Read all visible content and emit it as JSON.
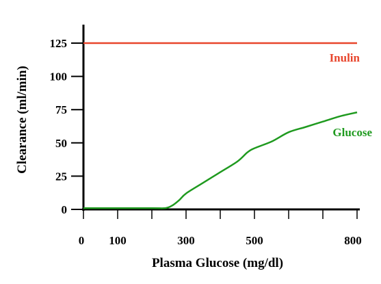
{
  "chart_data": {
    "type": "line",
    "title": "",
    "xlabel": "Plasma Glucose (mg/dl)",
    "ylabel": "Clearance (ml/min)",
    "xlim": [
      0,
      800
    ],
    "ylim": [
      0,
      137
    ],
    "x_ticks": [
      0,
      100,
      200,
      300,
      400,
      500,
      600,
      700,
      800
    ],
    "x_tick_labels": [
      "0",
      "100",
      "300",
      "500",
      "800"
    ],
    "x_tick_label_values": [
      0,
      100,
      300,
      500,
      800
    ],
    "y_ticks": [
      0,
      25,
      50,
      75,
      100,
      125
    ],
    "y_tick_labels": [
      "0",
      "25",
      "50",
      "75",
      "100",
      "125"
    ],
    "grid": false,
    "series": [
      {
        "name": "Inulin",
        "color": "#e8452c",
        "x": [
          0,
          800
        ],
        "y": [
          125,
          125
        ]
      },
      {
        "name": "Glucose",
        "color": "#1f9a1f",
        "x": [
          0,
          100,
          200,
          240,
          260,
          280,
          300,
          350,
          400,
          450,
          480,
          500,
          550,
          600,
          650,
          700,
          750,
          800
        ],
        "y": [
          1,
          1,
          1,
          1,
          3,
          7,
          12,
          20,
          28,
          36,
          43,
          46,
          51,
          58,
          62,
          66,
          70,
          73
        ]
      }
    ]
  }
}
